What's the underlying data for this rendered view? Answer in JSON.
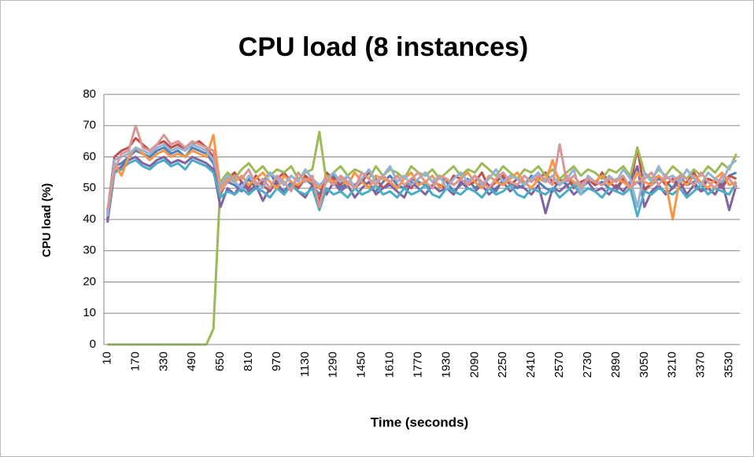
{
  "chart_data": {
    "type": "line",
    "title": "CPU load (8 instances)",
    "x_label": "Time (seconds)",
    "y_label": "CPU load  (%)",
    "categories": [
      10,
      null,
      null,
      null,
      170,
      null,
      null,
      null,
      330,
      null,
      null,
      null,
      490,
      null,
      null,
      null,
      650,
      null,
      null,
      null,
      810,
      null,
      null,
      null,
      970,
      null,
      null,
      null,
      1130,
      null,
      null,
      null,
      1290,
      null,
      null,
      null,
      1450,
      null,
      null,
      null,
      1610,
      null,
      null,
      null,
      1770,
      null,
      null,
      null,
      1930,
      null,
      null,
      null,
      2090,
      null,
      null,
      null,
      2250,
      null,
      null,
      null,
      2410,
      null,
      null,
      null,
      2570,
      null,
      null,
      null,
      2730,
      null,
      null,
      null,
      2890,
      null,
      null,
      null,
      3050,
      null,
      null,
      null,
      3210,
      null,
      null,
      null,
      3370,
      null,
      null,
      null,
      3530,
      null
    ],
    "ylim": [
      0,
      80
    ],
    "yticks": [
      0,
      10,
      20,
      30,
      40,
      50,
      60,
      70,
      80
    ],
    "grid": true,
    "series": [
      {
        "color": "#4F81BD",
        "values": [
          40,
          57,
          58,
          60,
          62,
          61,
          60,
          62,
          63,
          61,
          62,
          60,
          63,
          62,
          61,
          58,
          50,
          52,
          51,
          49,
          53,
          50,
          52,
          55,
          51,
          49,
          52,
          50,
          53,
          51,
          48,
          52,
          54,
          50,
          52,
          51,
          53,
          50,
          49,
          52,
          54,
          51,
          50,
          53,
          52,
          51,
          50,
          54,
          52,
          49,
          51,
          53,
          50,
          52,
          51,
          49,
          53,
          52,
          50,
          51,
          54,
          52,
          50,
          49,
          53,
          51,
          52,
          50,
          53,
          51,
          52,
          50,
          49,
          53,
          51,
          52,
          50,
          51,
          53,
          52,
          50,
          54,
          51,
          52,
          49,
          53,
          52,
          51,
          54,
          55
        ]
      },
      {
        "color": "#C0504D",
        "values": [
          42,
          60,
          62,
          63,
          66,
          64,
          62,
          64,
          65,
          63,
          64,
          62,
          64,
          65,
          63,
          60,
          48,
          53,
          55,
          52,
          50,
          54,
          51,
          49,
          53,
          55,
          52,
          50,
          54,
          52,
          46,
          55,
          53,
          51,
          54,
          50,
          52,
          55,
          53,
          50,
          52,
          54,
          51,
          50,
          53,
          55,
          52,
          51,
          50,
          54,
          53,
          51,
          52,
          55,
          50,
          52,
          54,
          51,
          53,
          52,
          50,
          53,
          55,
          52,
          51,
          54,
          50,
          52,
          53,
          51,
          55,
          52,
          50,
          53,
          51,
          63,
          49,
          52,
          54,
          51,
          53,
          50,
          52,
          55,
          51,
          53,
          52,
          50,
          54,
          53
        ]
      },
      {
        "color": "#9BBB59",
        "values": [
          0,
          0,
          0,
          0,
          0,
          0,
          0,
          0,
          0,
          0,
          0,
          0,
          0,
          0,
          0,
          5,
          52,
          55,
          53,
          56,
          58,
          55,
          57,
          54,
          56,
          55,
          57,
          53,
          55,
          56,
          68,
          52,
          55,
          57,
          54,
          56,
          55,
          53,
          57,
          54,
          56,
          55,
          53,
          57,
          55,
          54,
          56,
          53,
          55,
          57,
          54,
          56,
          55,
          58,
          56,
          54,
          57,
          55,
          53,
          56,
          55,
          57,
          54,
          56,
          53,
          55,
          57,
          54,
          56,
          55,
          53,
          56,
          55,
          57,
          54,
          63,
          55,
          53,
          56,
          54,
          57,
          55,
          53,
          56,
          54,
          57,
          55,
          58,
          56,
          61
        ]
      },
      {
        "color": "#8064A2",
        "values": [
          39,
          55,
          57,
          59,
          60,
          58,
          57,
          59,
          60,
          58,
          59,
          58,
          60,
          59,
          58,
          56,
          44,
          50,
          48,
          52,
          49,
          51,
          46,
          50,
          52,
          48,
          51,
          49,
          47,
          51,
          50,
          48,
          52,
          49,
          51,
          47,
          50,
          52,
          48,
          50,
          51,
          49,
          47,
          52,
          50,
          48,
          51,
          49,
          50,
          48,
          52,
          50,
          49,
          51,
          48,
          50,
          52,
          49,
          51,
          50,
          48,
          51,
          42,
          50,
          49,
          51,
          48,
          50,
          52,
          49,
          50,
          48,
          51,
          49,
          52,
          57,
          44,
          49,
          51,
          48,
          50,
          52,
          48,
          51,
          49,
          50,
          48,
          52,
          43,
          51
        ]
      },
      {
        "color": "#4BACC6",
        "values": [
          41,
          55,
          56,
          58,
          59,
          57,
          56,
          58,
          59,
          57,
          58,
          56,
          59,
          58,
          57,
          55,
          47,
          49,
          48,
          50,
          48,
          50,
          49,
          47,
          50,
          48,
          51,
          49,
          48,
          50,
          43,
          50,
          48,
          49,
          47,
          50,
          48,
          49,
          51,
          48,
          49,
          47,
          50,
          48,
          49,
          51,
          48,
          47,
          50,
          49,
          48,
          50,
          49,
          47,
          50,
          48,
          49,
          51,
          48,
          47,
          50,
          49,
          48,
          50,
          47,
          49,
          51,
          48,
          50,
          49,
          47,
          50,
          49,
          48,
          50,
          41,
          49,
          48,
          50,
          49,
          48,
          50,
          47,
          49,
          51,
          48,
          50,
          49,
          48,
          52
        ]
      },
      {
        "color": "#F79646",
        "values": [
          42,
          58,
          54,
          60,
          63,
          61,
          59,
          61,
          62,
          60,
          61,
          60,
          62,
          61,
          60,
          67,
          50,
          53,
          52,
          54,
          51,
          53,
          55,
          52,
          50,
          54,
          52,
          51,
          53,
          52,
          50,
          54,
          52,
          53,
          51,
          55,
          52,
          50,
          54,
          53,
          52,
          50,
          53,
          55,
          51,
          52,
          54,
          50,
          53,
          51,
          53,
          55,
          52,
          50,
          54,
          52,
          51,
          53,
          55,
          52,
          50,
          53,
          52,
          59,
          51,
          54,
          52,
          50,
          53,
          52,
          54,
          51,
          53,
          52,
          50,
          55,
          52,
          51,
          54,
          52,
          40,
          53,
          51,
          54,
          52,
          50,
          53,
          55,
          51,
          52
        ]
      },
      {
        "color": "#95B3D7",
        "values": [
          41,
          59,
          60,
          61,
          63,
          62,
          61,
          63,
          64,
          62,
          63,
          62,
          64,
          63,
          62,
          59,
          51,
          54,
          52,
          50,
          54,
          52,
          50,
          55,
          53,
          51,
          54,
          52,
          56,
          53,
          51,
          53,
          55,
          52,
          54,
          50,
          53,
          56,
          52,
          54,
          57,
          52,
          54,
          51,
          53,
          55,
          52,
          54,
          50,
          53,
          55,
          52,
          54,
          51,
          53,
          56,
          52,
          54,
          53,
          51,
          53,
          55,
          52,
          54,
          51,
          53,
          56,
          48,
          54,
          52,
          51,
          54,
          52,
          56,
          53,
          44,
          55,
          52,
          57,
          53,
          54,
          52,
          56,
          53,
          51,
          55,
          53,
          52,
          57,
          59
        ]
      },
      {
        "color": "#D99694",
        "values": [
          43,
          56,
          61,
          62,
          70,
          63,
          62,
          64,
          67,
          64,
          65,
          63,
          65,
          64,
          63,
          62,
          49,
          52,
          54,
          53,
          56,
          51,
          53,
          50,
          54,
          52,
          49,
          55,
          52,
          54,
          44,
          53,
          51,
          54,
          52,
          50,
          55,
          53,
          51,
          54,
          52,
          54,
          51,
          53,
          55,
          52,
          50,
          54,
          53,
          51,
          53,
          51,
          54,
          52,
          50,
          53,
          55,
          52,
          51,
          54,
          52,
          54,
          53,
          51,
          64,
          52,
          54,
          51,
          53,
          52,
          51,
          53,
          52,
          54,
          50,
          52,
          53,
          55,
          51,
          54,
          52,
          54,
          53,
          51,
          55,
          52,
          50,
          54,
          53,
          50
        ]
      }
    ]
  }
}
